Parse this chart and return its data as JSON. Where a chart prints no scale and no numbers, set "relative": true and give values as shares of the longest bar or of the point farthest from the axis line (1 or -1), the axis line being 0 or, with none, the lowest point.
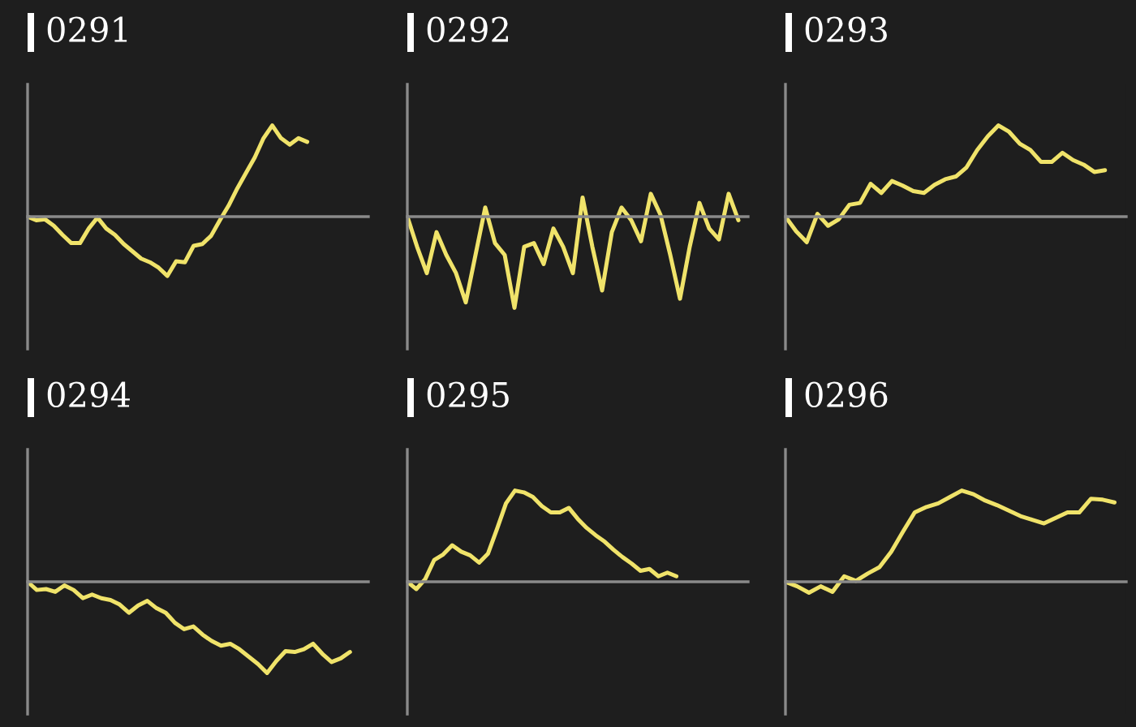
{
  "chart_data": [
    {
      "type": "line",
      "title": "0291",
      "relative": true,
      "color": "#f0e36a",
      "categories": [
        null,
        null,
        null,
        null,
        null,
        null,
        null,
        null,
        null,
        null,
        null,
        null,
        null,
        null,
        null,
        null,
        null,
        null,
        null,
        null,
        null,
        null,
        null,
        null,
        null,
        null,
        null,
        null,
        null,
        null,
        null,
        null,
        null,
        null,
        null,
        null,
        null,
        null,
        null,
        null
      ],
      "values": [
        0,
        -0.04,
        -0.03,
        -0.1,
        -0.2,
        -0.29,
        -0.29,
        -0.13,
        -0.01,
        -0.13,
        -0.2,
        -0.3,
        -0.38,
        -0.46,
        -0.5,
        -0.56,
        -0.65,
        -0.49,
        -0.5,
        -0.32,
        -0.3,
        -0.21,
        -0.04,
        0.12,
        0.31,
        0.48,
        0.65,
        0.86,
        1.0,
        0.86,
        0.79,
        0.86,
        0.82,
        null,
        null,
        null,
        null,
        null,
        null,
        null
      ]
    },
    {
      "type": "line",
      "title": "0292",
      "relative": true,
      "color": "#f0e36a",
      "categories": [
        null,
        null,
        null,
        null,
        null,
        null,
        null,
        null,
        null,
        null,
        null,
        null,
        null,
        null,
        null,
        null,
        null,
        null,
        null,
        null,
        null,
        null,
        null,
        null,
        null,
        null,
        null,
        null,
        null,
        null,
        null,
        null,
        null,
        null,
        null,
        null
      ],
      "values": [
        0,
        -0.33,
        -0.62,
        -0.17,
        -0.42,
        -0.62,
        -0.94,
        -0.42,
        0.1,
        -0.29,
        -0.42,
        -1.0,
        -0.33,
        -0.29,
        -0.52,
        -0.13,
        -0.33,
        -0.62,
        0.21,
        -0.33,
        -0.81,
        -0.17,
        0.1,
        -0.04,
        -0.27,
        0.25,
        0.02,
        -0.42,
        -0.9,
        -0.33,
        0.15,
        -0.13,
        -0.25,
        0.25,
        -0.04,
        null
      ]
    },
    {
      "type": "line",
      "title": "0293",
      "relative": true,
      "color": "#f0e36a",
      "categories": [
        null,
        null,
        null,
        null,
        null,
        null,
        null,
        null,
        null,
        null,
        null,
        null,
        null,
        null,
        null,
        null,
        null,
        null,
        null,
        null,
        null,
        null,
        null,
        null,
        null,
        null,
        null,
        null,
        null,
        null,
        null,
        null,
        null
      ],
      "values": [
        0,
        -0.16,
        -0.28,
        0.03,
        -0.1,
        -0.03,
        0.13,
        0.15,
        0.36,
        0.26,
        0.39,
        0.34,
        0.28,
        0.26,
        0.35,
        0.41,
        0.44,
        0.54,
        0.73,
        0.88,
        1.0,
        0.93,
        0.8,
        0.73,
        0.6,
        0.6,
        0.7,
        0.62,
        0.57,
        0.49,
        0.51,
        null,
        null
      ]
    },
    {
      "type": "line",
      "title": "0294",
      "relative": true,
      "color": "#f0e36a",
      "categories": [
        null,
        null,
        null,
        null,
        null,
        null,
        null,
        null,
        null,
        null,
        null,
        null,
        null,
        null,
        null,
        null,
        null,
        null,
        null,
        null,
        null,
        null,
        null,
        null,
        null,
        null,
        null,
        null,
        null,
        null,
        null,
        null,
        null,
        null,
        null,
        null,
        null,
        null
      ],
      "values": [
        0,
        -0.09,
        -0.08,
        -0.11,
        -0.04,
        -0.09,
        -0.18,
        -0.14,
        -0.18,
        -0.2,
        -0.25,
        -0.34,
        -0.26,
        -0.21,
        -0.29,
        -0.34,
        -0.45,
        -0.52,
        -0.49,
        -0.58,
        -0.65,
        -0.7,
        -0.68,
        -0.74,
        -0.82,
        -0.9,
        -1.0,
        -0.87,
        -0.76,
        -0.77,
        -0.74,
        -0.68,
        -0.79,
        -0.88,
        -0.84,
        -0.77,
        null,
        null
      ]
    },
    {
      "type": "line",
      "title": "0295",
      "relative": true,
      "color": "#f0e36a",
      "categories": [
        null,
        null,
        null,
        null,
        null,
        null,
        null,
        null,
        null,
        null,
        null,
        null,
        null,
        null,
        null,
        null,
        null,
        null,
        null,
        null,
        null,
        null,
        null,
        null,
        null,
        null,
        null,
        null,
        null,
        null,
        null,
        null,
        null,
        null,
        null,
        null,
        null,
        null,
        null
      ],
      "values": [
        0,
        -0.08,
        0.03,
        0.24,
        0.3,
        0.4,
        0.33,
        0.29,
        0.21,
        0.31,
        0.58,
        0.86,
        1.0,
        0.98,
        0.93,
        0.83,
        0.76,
        0.76,
        0.81,
        0.69,
        0.59,
        0.51,
        0.44,
        0.35,
        0.27,
        0.2,
        0.12,
        0.14,
        0.06,
        0.1,
        0.06,
        null,
        null,
        null,
        null,
        null,
        null,
        null,
        null
      ]
    },
    {
      "type": "line",
      "title": "0296",
      "relative": true,
      "color": "#f0e36a",
      "categories": [
        null,
        null,
        null,
        null,
        null,
        null,
        null,
        null,
        null,
        null,
        null,
        null,
        null,
        null,
        null,
        null,
        null,
        null,
        null,
        null,
        null,
        null,
        null,
        null,
        null,
        null,
        null,
        null,
        null,
        null
      ],
      "values": [
        0,
        -0.05,
        -0.12,
        -0.05,
        -0.11,
        0.06,
        0.01,
        0.09,
        0.16,
        0.33,
        0.55,
        0.76,
        0.82,
        0.86,
        0.93,
        1.0,
        0.96,
        0.89,
        0.84,
        0.78,
        0.72,
        0.68,
        0.64,
        0.7,
        0.76,
        0.76,
        0.91,
        0.9,
        0.87,
        null
      ]
    }
  ]
}
